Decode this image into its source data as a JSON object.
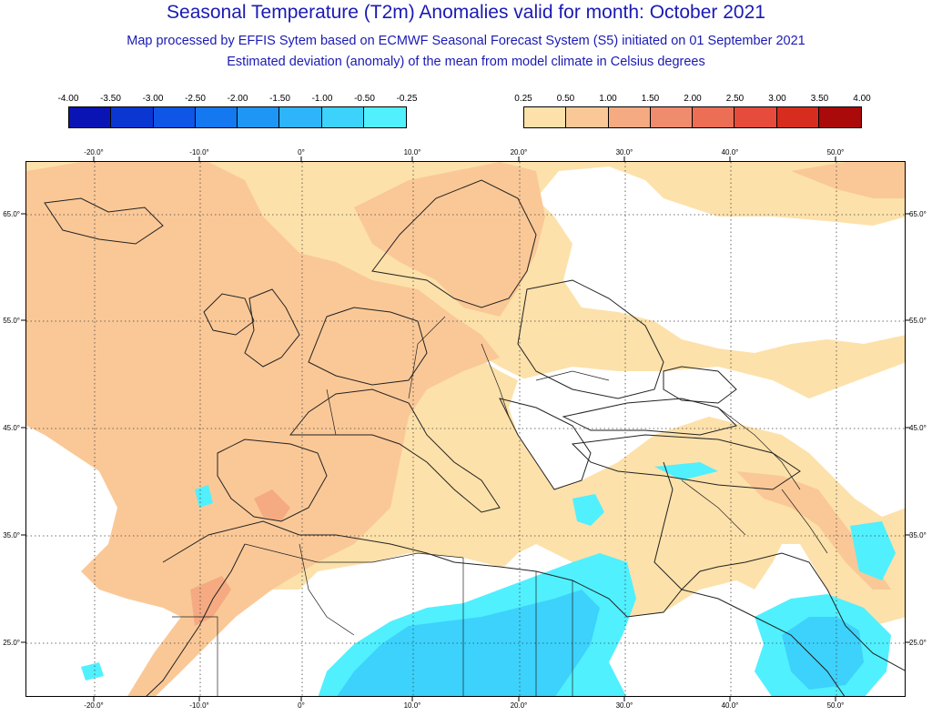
{
  "header": {
    "title": "Seasonal Temperature (T2m) Anomalies valid for month: October 2021",
    "subtitle1": "Map processed by EFFIS Sytem based on ECMWF Seasonal Forecast System (S5) initiated on 01 September 2021",
    "subtitle2": "Estimated deviation (anomaly) of the mean from model climate in Celsius degrees"
  },
  "legend": {
    "negative": {
      "labels": [
        "-4.00",
        "-3.50",
        "-3.00",
        "-2.50",
        "-2.00",
        "-1.50",
        "-1.00",
        "-0.50",
        "-0.25"
      ],
      "colors": [
        "#0a14b4",
        "#0a37d2",
        "#0f55e6",
        "#1478f0",
        "#1e96f5",
        "#2db4fa",
        "#3cd2fc",
        "#50f0ff"
      ]
    },
    "positive": {
      "labels": [
        "0.25",
        "0.50",
        "1.00",
        "1.50",
        "2.00",
        "2.50",
        "3.00",
        "3.50",
        "4.00"
      ],
      "colors": [
        "#fde1aa",
        "#fac897",
        "#f5aa82",
        "#f08c6e",
        "#eb6e55",
        "#e64b3c",
        "#d72d1e",
        "#aa0a0a"
      ]
    }
  },
  "map": {
    "lon_ticks": [
      "-20.0°",
      "-10.0°",
      "0°",
      "10.0°",
      "20.0°",
      "30.0°",
      "40.0°",
      "50.0°"
    ],
    "lat_ticks": [
      "65.0°",
      "55.0°",
      "45.0°",
      "35.0°",
      "25.0°"
    ],
    "colors": {
      "warm_light": "#fde1aa",
      "warm_mid": "#fac897",
      "warm_dark": "#f5aa82",
      "cool_light": "#50f0ff",
      "cool_mid": "#3cd2fc",
      "coast": "#222222",
      "graticule": "#444444"
    }
  }
}
